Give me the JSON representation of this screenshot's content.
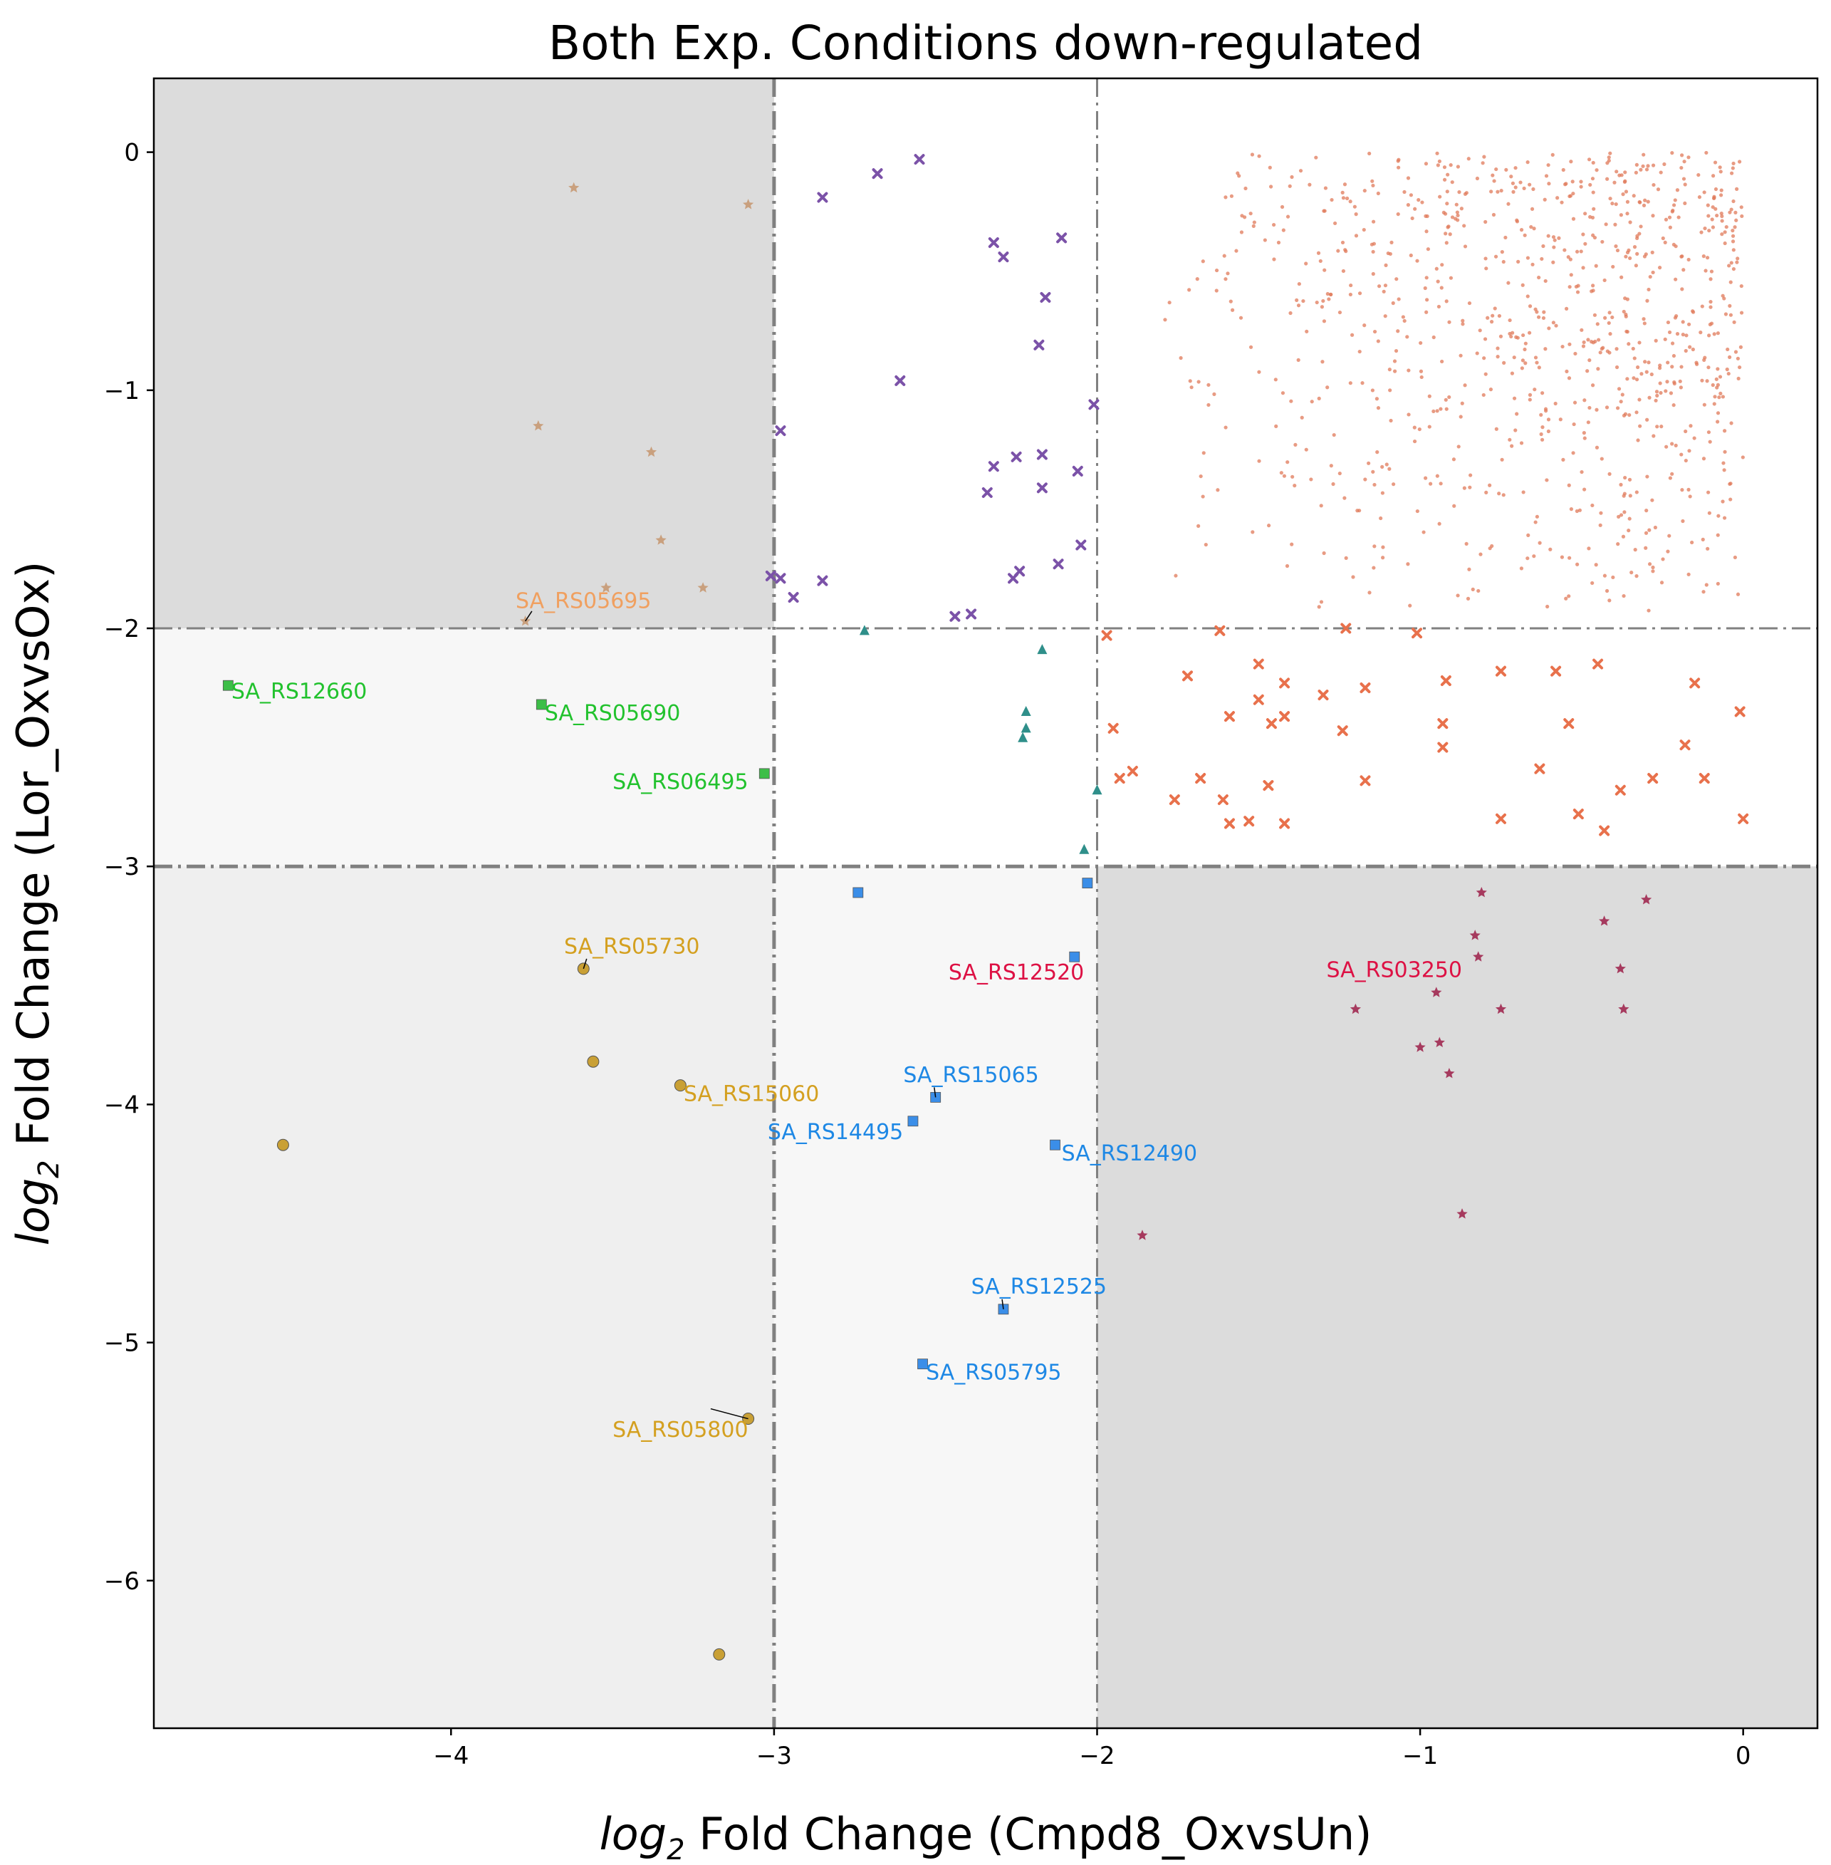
{
  "chart_data": {
    "type": "scatter",
    "title": "Both Exp. Conditions down-regulated",
    "xlabel": {
      "prefix": "log",
      "sub": "2",
      "text": " Fold Change (Cmpd8_OxvsUn)"
    },
    "ylabel": {
      "prefix": "log",
      "sub": "2",
      "text": " Fold Change (Lor_OxvsOx)"
    },
    "xlim": [
      -4.92,
      0.23
    ],
    "ylim": [
      -6.62,
      0.31
    ],
    "xticks": [
      -4,
      -3,
      -2,
      -1,
      0
    ],
    "yticks": [
      0,
      -1,
      -2,
      -3,
      -4,
      -5,
      -6
    ],
    "tick_labels": {
      "x": [
        "−4",
        "−3",
        "−2",
        "−1",
        "0"
      ],
      "y": [
        "0",
        "−1",
        "−2",
        "−3",
        "−4",
        "−5",
        "−6"
      ]
    },
    "thresholds": {
      "x": [
        -3,
        -2
      ],
      "y": [
        -2,
        -3
      ]
    },
    "regions": [
      {
        "x": [
          -4.92,
          -3
        ],
        "y": [
          -2,
          0.31
        ],
        "color": "#dcdcdc"
      },
      {
        "x": [
          -2,
          0.23
        ],
        "y": [
          -6.62,
          -3
        ],
        "color": "#dcdcdc"
      },
      {
        "x": [
          -4.92,
          -3
        ],
        "y": [
          -6.62,
          -3
        ],
        "color": "#efefef"
      },
      {
        "x": [
          -4.92,
          -3
        ],
        "y": [
          -3,
          -2
        ],
        "color": "#f7f7f7"
      },
      {
        "x": [
          -3,
          -2
        ],
        "y": [
          -6.62,
          -3
        ],
        "color": "#f7f7f7"
      }
    ],
    "background_cloud": {
      "color": "#e07a5a",
      "x_range": [
        -1.85,
        0
      ],
      "y_range": [
        -1.95,
        0
      ],
      "count": 900,
      "note": "dense small points, concentrated toward x=0, y=0"
    },
    "series": [
      {
        "marker": "star",
        "color": "#c9a07e",
        "points": [
          [
            -3.62,
            -0.15
          ],
          [
            -3.08,
            -0.22
          ],
          [
            -3.73,
            -1.15
          ],
          [
            -3.38,
            -1.26
          ],
          [
            -3.35,
            -1.63
          ],
          [
            -3.52,
            -1.83
          ],
          [
            -3.22,
            -1.83
          ],
          [
            -3.77,
            -1.97
          ]
        ]
      },
      {
        "marker": "x",
        "color": "#7b52a8",
        "points": [
          [
            -2.55,
            -0.03
          ],
          [
            -2.68,
            -0.09
          ],
          [
            -2.85,
            -0.19
          ],
          [
            -2.32,
            -0.38
          ],
          [
            -2.11,
            -0.36
          ],
          [
            -2.29,
            -0.44
          ],
          [
            -2.16,
            -0.61
          ],
          [
            -2.18,
            -0.81
          ],
          [
            -2.61,
            -0.96
          ],
          [
            -2.01,
            -1.06
          ],
          [
            -2.98,
            -1.17
          ],
          [
            -2.17,
            -1.27
          ],
          [
            -2.25,
            -1.28
          ],
          [
            -2.32,
            -1.32
          ],
          [
            -2.06,
            -1.34
          ],
          [
            -2.17,
            -1.41
          ],
          [
            -2.34,
            -1.43
          ],
          [
            -2.05,
            -1.65
          ],
          [
            -2.12,
            -1.73
          ],
          [
            -2.24,
            -1.76
          ],
          [
            -2.26,
            -1.79
          ],
          [
            -3.01,
            -1.78
          ],
          [
            -2.98,
            -1.79
          ],
          [
            -2.85,
            -1.8
          ],
          [
            -2.94,
            -1.87
          ],
          [
            -2.39,
            -1.94
          ],
          [
            -2.44,
            -1.95
          ]
        ]
      },
      {
        "marker": "x",
        "color": "#e8714c",
        "points": [
          [
            -1.97,
            -2.03
          ],
          [
            -1.23,
            -2.0
          ],
          [
            -1.01,
            -2.02
          ],
          [
            -1.62,
            -2.01
          ],
          [
            -1.5,
            -2.15
          ],
          [
            -0.45,
            -2.15
          ],
          [
            -0.75,
            -2.18
          ],
          [
            -0.58,
            -2.18
          ],
          [
            -0.92,
            -2.22
          ],
          [
            -1.42,
            -2.23
          ],
          [
            -0.15,
            -2.23
          ],
          [
            -1.17,
            -2.25
          ],
          [
            -1.72,
            -2.2
          ],
          [
            -1.3,
            -2.28
          ],
          [
            -1.5,
            -2.3
          ],
          [
            -0.01,
            -2.35
          ],
          [
            -1.59,
            -2.37
          ],
          [
            -1.42,
            -2.37
          ],
          [
            -1.46,
            -2.4
          ],
          [
            -0.93,
            -2.4
          ],
          [
            -0.54,
            -2.4
          ],
          [
            -1.24,
            -2.43
          ],
          [
            -1.95,
            -2.42
          ],
          [
            -0.93,
            -2.5
          ],
          [
            -0.18,
            -2.49
          ],
          [
            -0.63,
            -2.59
          ],
          [
            -1.89,
            -2.6
          ],
          [
            -1.93,
            -2.63
          ],
          [
            -0.28,
            -2.63
          ],
          [
            -0.12,
            -2.63
          ],
          [
            -1.68,
            -2.63
          ],
          [
            -1.17,
            -2.64
          ],
          [
            -1.47,
            -2.66
          ],
          [
            -0.38,
            -2.68
          ],
          [
            -1.61,
            -2.72
          ],
          [
            -1.76,
            -2.72
          ],
          [
            -0.51,
            -2.78
          ],
          [
            -0.75,
            -2.8
          ],
          [
            0.0,
            -2.8
          ],
          [
            -1.53,
            -2.81
          ],
          [
            -1.59,
            -2.82
          ],
          [
            -1.42,
            -2.82
          ],
          [
            -0.43,
            -2.85
          ]
        ]
      },
      {
        "marker": "triangle",
        "color": "#2f8f8a",
        "points": [
          [
            -2.72,
            -2.01
          ],
          [
            -2.17,
            -2.09
          ],
          [
            -2.22,
            -2.35
          ],
          [
            -2.22,
            -2.42
          ],
          [
            -2.23,
            -2.46
          ],
          [
            -2.0,
            -2.68
          ],
          [
            -2.04,
            -2.93
          ]
        ]
      },
      {
        "marker": "square",
        "color": "#3dbe48",
        "points": [
          [
            -4.69,
            -2.24
          ],
          [
            -3.72,
            -2.32
          ],
          [
            -3.03,
            -2.61
          ]
        ]
      },
      {
        "marker": "square",
        "color": "#3b8ee8",
        "points": [
          [
            -2.74,
            -3.11
          ],
          [
            -2.03,
            -3.07
          ],
          [
            -2.07,
            -3.38
          ],
          [
            -2.5,
            -3.97
          ],
          [
            -2.57,
            -4.07
          ],
          [
            -2.13,
            -4.17
          ],
          [
            -2.29,
            -4.86
          ],
          [
            -2.54,
            -5.09
          ]
        ]
      },
      {
        "marker": "circle",
        "color": "#c9a035",
        "points": [
          [
            -3.59,
            -3.43
          ],
          [
            -3.56,
            -3.82
          ],
          [
            -3.29,
            -3.92
          ],
          [
            -4.52,
            -4.17
          ],
          [
            -3.08,
            -5.32
          ],
          [
            -3.17,
            -6.31
          ]
        ]
      },
      {
        "marker": "star",
        "color": "#a63a5e",
        "points": [
          [
            -0.81,
            -3.11
          ],
          [
            -0.3,
            -3.14
          ],
          [
            -0.43,
            -3.23
          ],
          [
            -0.83,
            -3.29
          ],
          [
            -0.82,
            -3.38
          ],
          [
            -0.38,
            -3.43
          ],
          [
            -0.95,
            -3.53
          ],
          [
            -1.2,
            -3.6
          ],
          [
            -0.75,
            -3.6
          ],
          [
            -0.37,
            -3.6
          ],
          [
            -0.94,
            -3.74
          ],
          [
            -1.0,
            -3.76
          ],
          [
            -0.91,
            -3.87
          ],
          [
            -0.87,
            -4.46
          ],
          [
            -1.86,
            -4.55
          ]
        ]
      }
    ],
    "annotations": [
      {
        "text": "SA_RS05695",
        "color": "#f0a060",
        "x": -3.77,
        "y": -1.97,
        "tx": -3.8,
        "ty": -1.89,
        "leader": true
      },
      {
        "text": "SA_RS12660",
        "color": "#22c22e",
        "x": -4.69,
        "y": -2.24,
        "tx": -4.68,
        "ty": -2.27,
        "leader": false
      },
      {
        "text": "SA_RS05690",
        "color": "#22c22e",
        "x": -3.72,
        "y": -2.32,
        "tx": -3.71,
        "ty": -2.36,
        "leader": false
      },
      {
        "text": "SA_RS06495",
        "color": "#22c22e",
        "x": -3.03,
        "y": -2.61,
        "tx": -3.5,
        "ty": -2.65,
        "leader": false
      },
      {
        "text": "SA_RS05730",
        "color": "#d4a020",
        "x": -3.59,
        "y": -3.43,
        "tx": -3.65,
        "ty": -3.34,
        "leader": true
      },
      {
        "text": "SA_RS12520",
        "color": "#dd1144",
        "x": -2.07,
        "y": -3.38,
        "tx": -2.46,
        "ty": -3.45,
        "leader": false
      },
      {
        "text": "SA_RS03250",
        "color": "#dd1144",
        "x": -0.82,
        "y": -3.38,
        "tx": -1.29,
        "ty": -3.44,
        "leader": false
      },
      {
        "text": "SA_RS15060",
        "color": "#d4a020",
        "x": -3.29,
        "y": -3.92,
        "tx": -3.28,
        "ty": -3.96,
        "leader": false
      },
      {
        "text": "SA_RS15065",
        "color": "#1e88e5",
        "x": -2.5,
        "y": -3.97,
        "tx": -2.6,
        "ty": -3.88,
        "leader": true
      },
      {
        "text": "SA_RS14495",
        "color": "#1e88e5",
        "x": -2.57,
        "y": -4.07,
        "tx": -3.02,
        "ty": -4.12,
        "leader": false
      },
      {
        "text": "SA_RS12490",
        "color": "#1e88e5",
        "x": -2.13,
        "y": -4.17,
        "tx": -2.11,
        "ty": -4.21,
        "leader": false
      },
      {
        "text": "SA_RS12525",
        "color": "#1e88e5",
        "x": -2.29,
        "y": -4.86,
        "tx": -2.39,
        "ty": -4.77,
        "leader": true
      },
      {
        "text": "SA_RS05795",
        "color": "#1e88e5",
        "x": -2.54,
        "y": -5.09,
        "tx": -2.53,
        "ty": -5.13,
        "leader": false
      },
      {
        "text": "SA_RS05800",
        "color": "#d4a020",
        "x": -3.08,
        "y": -5.32,
        "tx": -3.5,
        "ty": -5.37,
        "leader": true
      }
    ]
  }
}
